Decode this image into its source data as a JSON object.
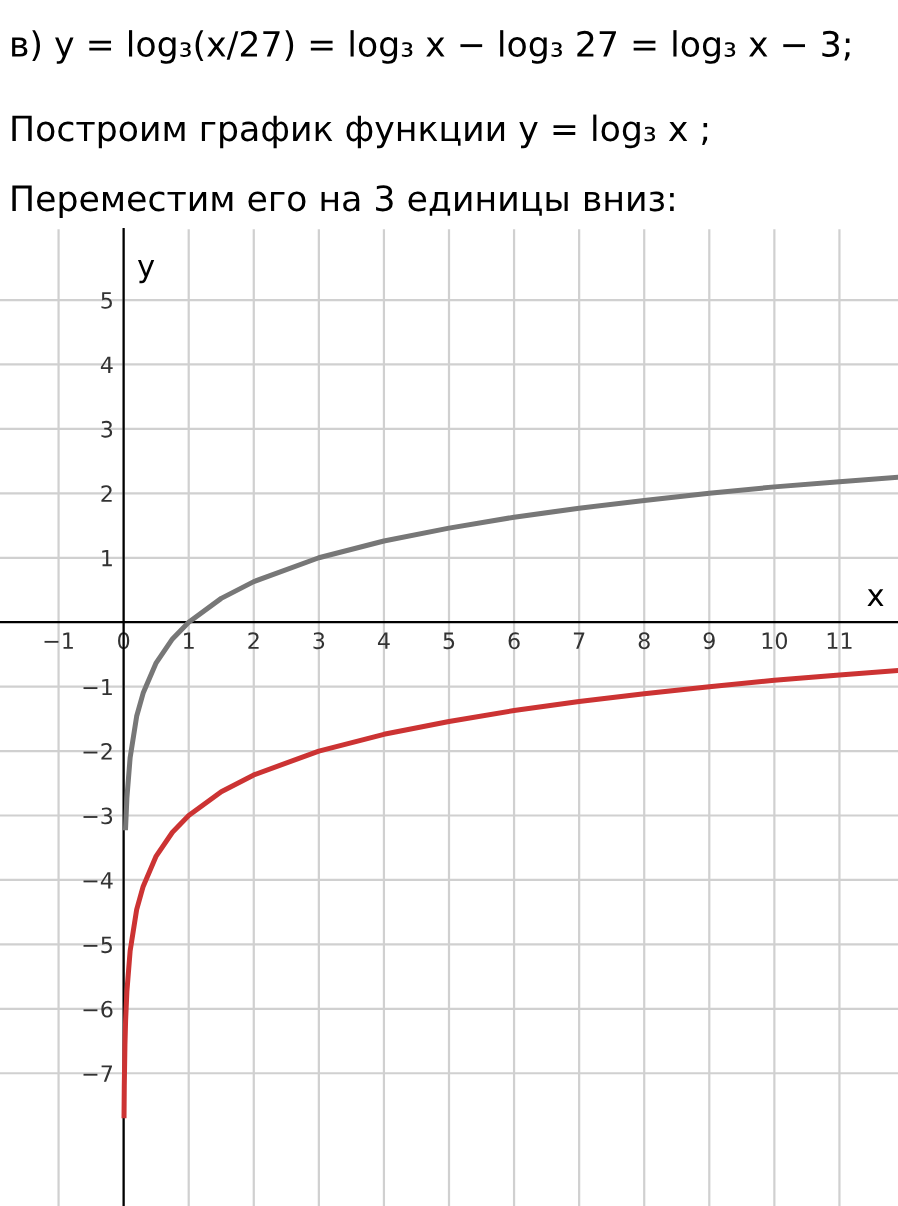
{
  "chart_data": {
    "type": "line",
    "title": "в) y = log₃(x/27) = log₃ x − log₃ 27 = log₃ x − 3;",
    "annotations": [
      "Построим график функции y = log₃ x ;",
      "Переместим его на 3 единицы вниз:"
    ],
    "xlabel": "x",
    "ylabel": "y",
    "series": [
      {
        "color": "#777777",
        "x": [
          0.03,
          0.05,
          0.1,
          0.2,
          0.3,
          0.5,
          0.75,
          1,
          1.5,
          2,
          3,
          4,
          5,
          6,
          7,
          8,
          9,
          10,
          11,
          11.9
        ],
        "values": [
          -3.19,
          -2.73,
          -2.1,
          -1.46,
          -1.1,
          -0.63,
          -0.26,
          0,
          0.37,
          0.63,
          1,
          1.26,
          1.46,
          1.63,
          1.77,
          1.89,
          2,
          2.1,
          2.18,
          2.25
        ]
      },
      {
        "color": "#cc3333",
        "x": [
          0.006,
          0.01,
          0.02,
          0.03,
          0.05,
          0.1,
          0.2,
          0.3,
          0.5,
          0.75,
          1,
          1.5,
          2,
          3,
          4,
          5,
          6,
          7,
          8,
          9,
          10,
          11,
          11.9
        ],
        "values": [
          -7.66,
          -7.19,
          -6.56,
          -6.19,
          -5.73,
          -5.1,
          -4.46,
          -4.1,
          -3.63,
          -3.26,
          -3,
          -2.63,
          -2.37,
          -2,
          -1.74,
          -1.54,
          -1.37,
          -1.23,
          -1.11,
          -1,
          -0.9,
          -0.82,
          -0.75
        ]
      }
    ],
    "xlim": [
      -1.9,
      11.9
    ],
    "ylim": [
      -9.06,
      6.1
    ],
    "xticks": [
      -1,
      0,
      1,
      2,
      3,
      4,
      5,
      6,
      7,
      8,
      9,
      10,
      11
    ],
    "yticks": [
      -7,
      -6,
      -5,
      -4,
      -3,
      -2,
      -1,
      1,
      2,
      3,
      4,
      5
    ],
    "grid": true,
    "marker": "none",
    "line_style": "solid"
  }
}
